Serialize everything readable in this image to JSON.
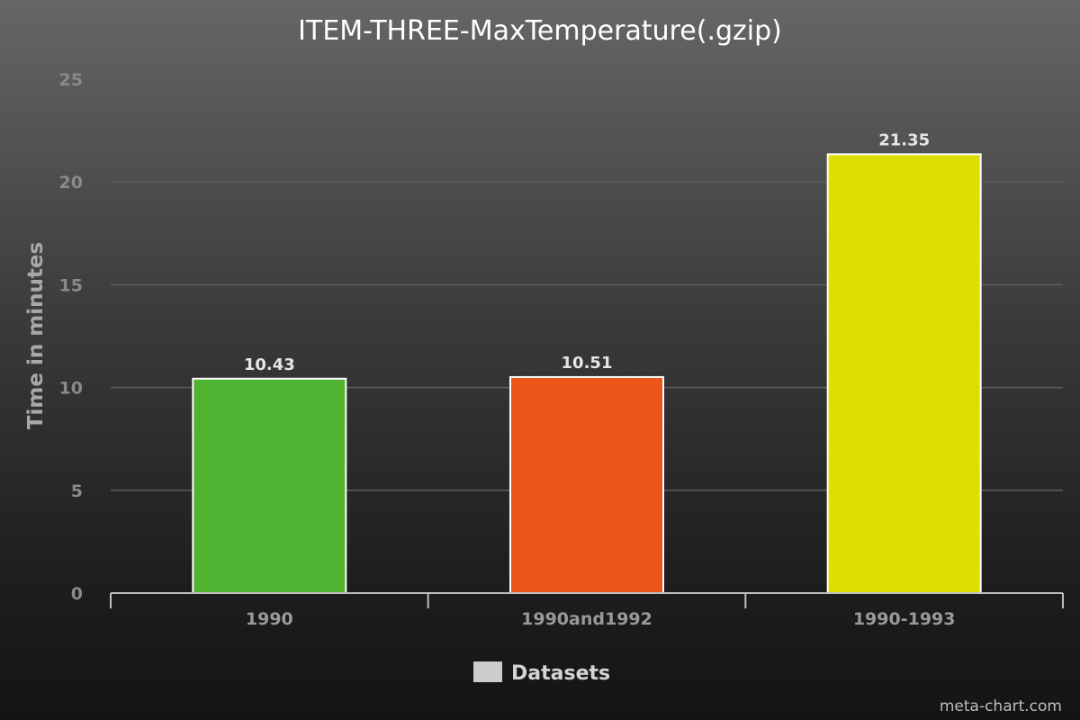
{
  "chart_data": {
    "type": "bar",
    "title": "ITEM-THREE-MaxTemperature(.gzip)",
    "ylabel": "Time in minutes",
    "xlabel": "",
    "categories": [
      "1990",
      "1990and1992",
      "1990-1993"
    ],
    "series": [
      {
        "name": "Datasets",
        "values": [
          10.43,
          10.51,
          21.35
        ]
      }
    ],
    "data_labels": [
      "10.43",
      "10.51",
      "21.35"
    ],
    "bar_colors": [
      "#50b432",
      "#ed561b",
      "#dddf00"
    ],
    "ylim": [
      0,
      25
    ],
    "yticks": [
      0,
      5,
      10,
      15,
      20,
      25
    ],
    "ytick_labels": [
      "0",
      "5",
      "10",
      "15",
      "20",
      "25"
    ],
    "grid": true,
    "legend": {
      "position": "bottom-center",
      "label": "Datasets",
      "swatch_color": "#cccccc"
    }
  },
  "credit": "meta-chart.com"
}
